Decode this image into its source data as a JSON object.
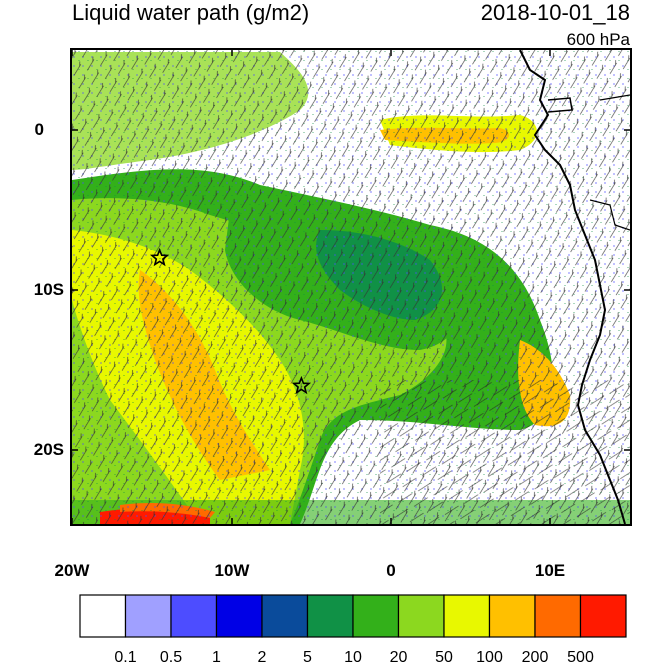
{
  "title": "Liquid water path (g/m2)",
  "datetime": "2018-10-01_18",
  "level": "600 hPa",
  "axes": {
    "x_ticks": [
      "20W",
      "10W",
      "0",
      "10E"
    ],
    "y_ticks": [
      "0",
      "10S",
      "20S"
    ],
    "x_range": [
      -20,
      15
    ],
    "y_range": [
      5,
      -25
    ]
  },
  "markers": [
    {
      "name": "star",
      "lon": -14.5,
      "lat": -8
    },
    {
      "name": "star",
      "lon": -5.6,
      "lat": -16
    }
  ],
  "colorbar": {
    "labels": [
      "0.1",
      "0.5",
      "1",
      "2",
      "5",
      "10",
      "20",
      "50",
      "100",
      "200",
      "500"
    ],
    "colors": [
      "#ffffff",
      "#a0a0ff",
      "#4d4dff",
      "#0000e6",
      "#0a4b9b",
      "#109146",
      "#33b01a",
      "#8cd81f",
      "#e8f800",
      "#ffc000",
      "#ff6a00",
      "#ff1a00"
    ]
  }
}
